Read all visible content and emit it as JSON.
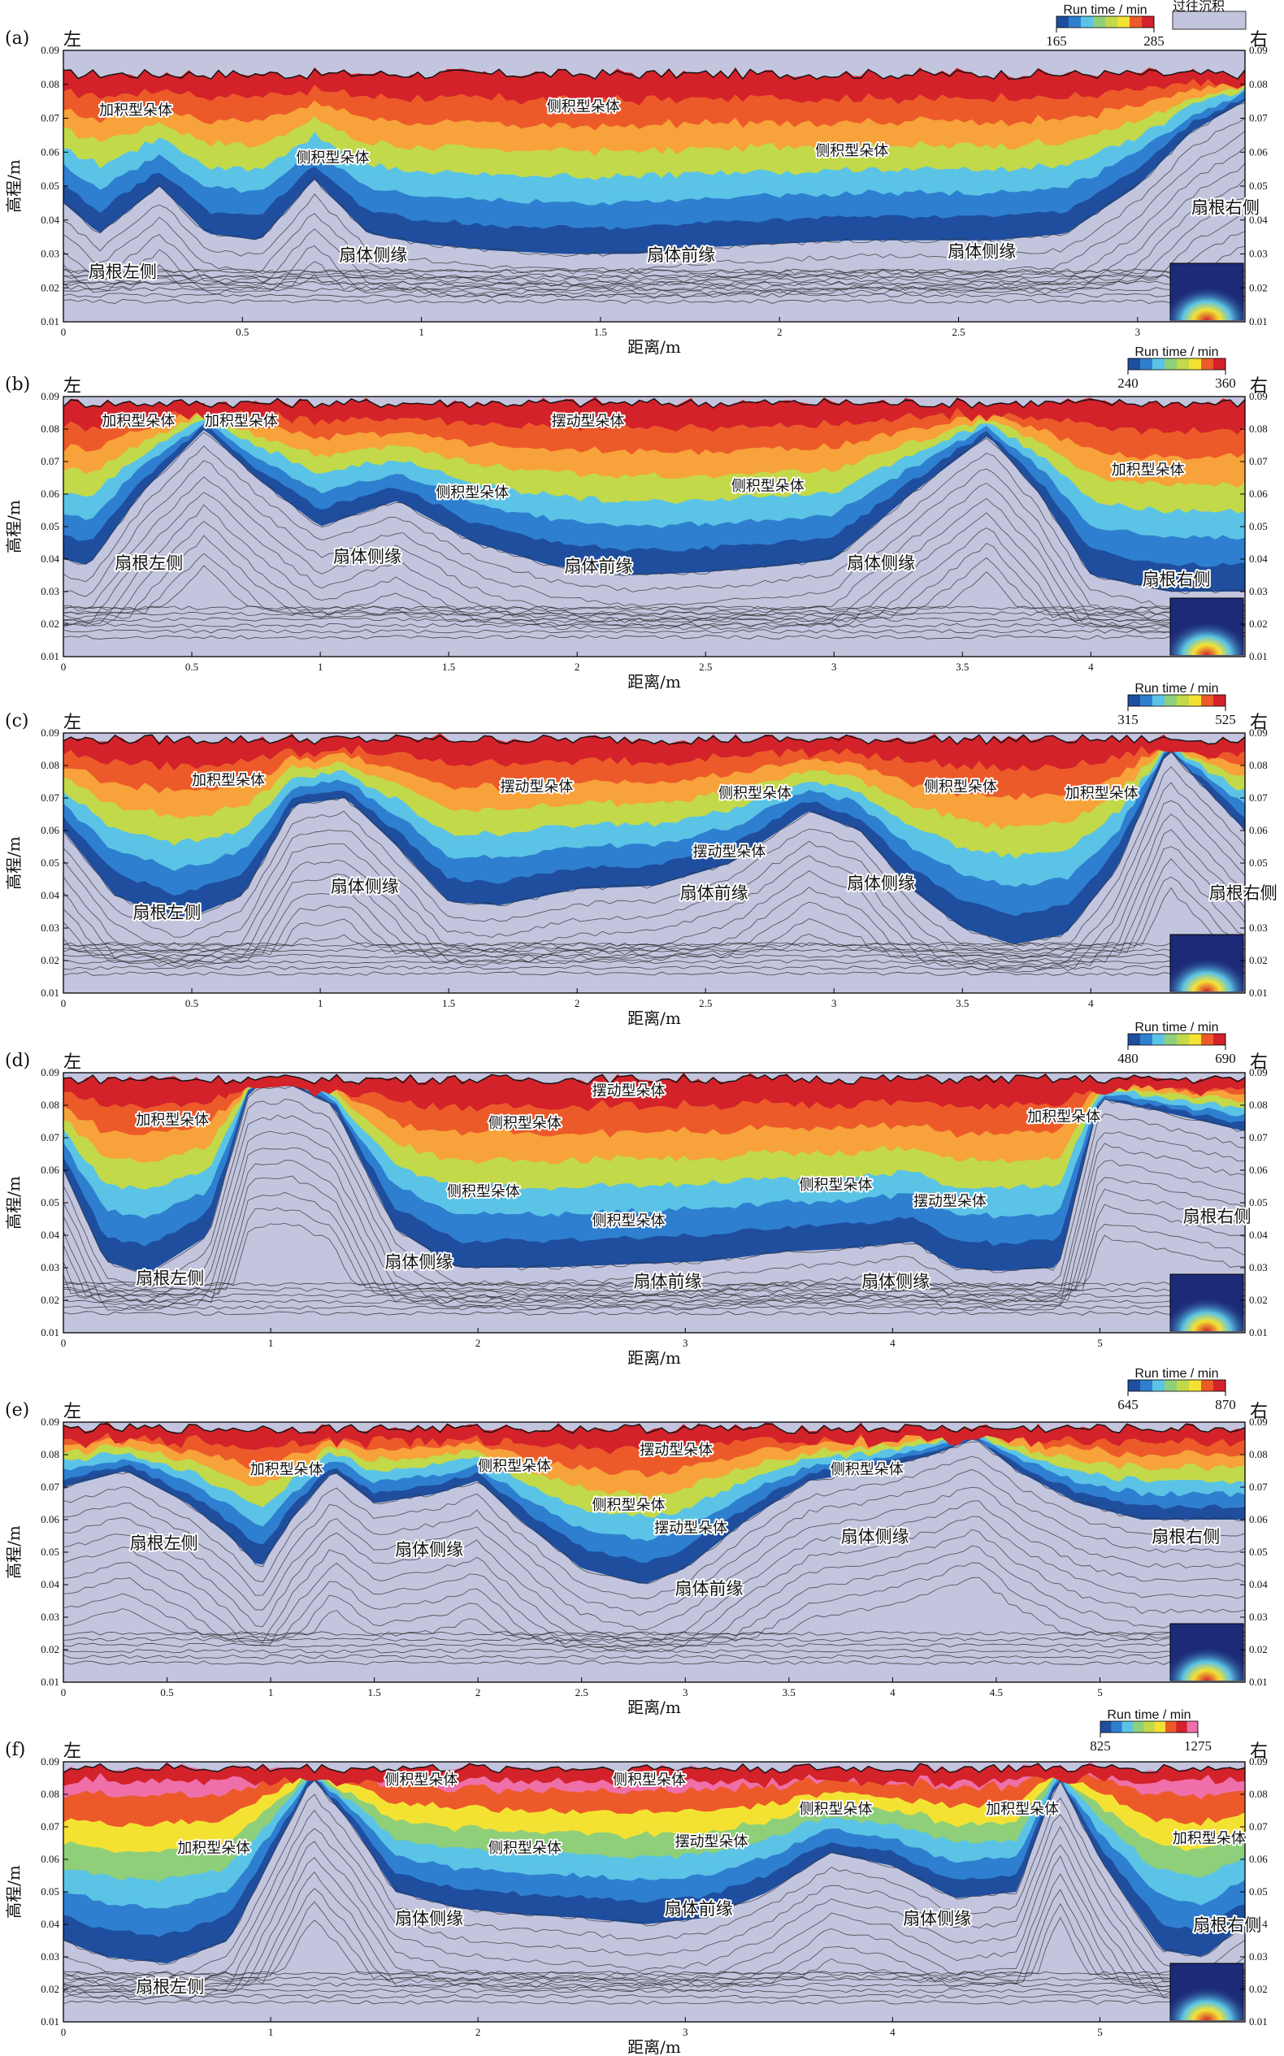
{
  "figure": {
    "legend_past": "过往沉积",
    "colorbar_title": "Run time / min",
    "palette": [
      "#1f4e9e",
      "#2f7fd0",
      "#5bc4e6",
      "#8fcf7a",
      "#c2d94a",
      "#f4e233",
      "#f7a23a",
      "#ec5a2a",
      "#d3222a",
      "#9e1a1a",
      "#ef6fa8"
    ],
    "past_color": "#c3c5de"
  },
  "chart_data": [
    {
      "type": "area",
      "panel_label": "(a)",
      "left_label": "左",
      "right_label": "右",
      "xlabel": "距离/m",
      "ylabel": "高程/m",
      "xlim": [
        0,
        3.3
      ],
      "xticks": [
        "0",
        "0.5",
        "1",
        "1.5",
        "2",
        "2.5",
        "3"
      ],
      "ylim": [
        0.01,
        0.09
      ],
      "yticks": [
        "0.01",
        "0.02",
        "0.03",
        "0.04",
        "0.05",
        "0.06",
        "0.07",
        "0.08",
        "0.09"
      ],
      "colorbar": {
        "min": "165",
        "max": "285"
      },
      "surface_elevation": 0.083,
      "past_surface": {
        "x": [
          0,
          0.1,
          0.27,
          0.4,
          0.55,
          0.7,
          0.85,
          1.0,
          1.2,
          1.4,
          1.6,
          1.8,
          2.0,
          2.2,
          2.4,
          2.6,
          2.8,
          3.0,
          3.15,
          3.3
        ],
        "y": [
          0.045,
          0.036,
          0.05,
          0.036,
          0.034,
          0.052,
          0.036,
          0.033,
          0.031,
          0.03,
          0.03,
          0.032,
          0.033,
          0.034,
          0.034,
          0.034,
          0.036,
          0.05,
          0.066,
          0.075
        ]
      },
      "annotations": [
        {
          "text": "加积型朵体",
          "x": 0.1,
          "y": 0.071
        },
        {
          "text": "侧积型朵体",
          "x": 1.35,
          "y": 0.072
        },
        {
          "text": "侧积型朵体",
          "x": 0.65,
          "y": 0.057
        },
        {
          "text": "侧积型朵体",
          "x": 2.1,
          "y": 0.059
        },
        {
          "text": "扇根左侧",
          "x": 0.07,
          "y": 0.023
        },
        {
          "text": "扇体侧缘",
          "x": 0.77,
          "y": 0.028
        },
        {
          "text": "扇体前缘",
          "x": 1.63,
          "y": 0.028
        },
        {
          "text": "扇体侧缘",
          "x": 2.47,
          "y": 0.029
        },
        {
          "text": "扇根右侧",
          "x": 3.15,
          "y": 0.042
        }
      ]
    },
    {
      "type": "area",
      "panel_label": "(b)",
      "left_label": "左",
      "right_label": "右",
      "xlabel": "距离/m",
      "ylabel": "高程/m",
      "xlim": [
        0,
        4.6
      ],
      "xticks": [
        "0",
        "0.5",
        "1",
        "1.5",
        "2",
        "2.5",
        "3",
        "3.5",
        "4"
      ],
      "ylim": [
        0.01,
        0.09
      ],
      "yticks": [
        "0.01",
        "0.02",
        "0.03",
        "0.04",
        "0.05",
        "0.06",
        "0.07",
        "0.08",
        "0.09"
      ],
      "colorbar": {
        "min": "240",
        "max": "360"
      },
      "surface_elevation": 0.088,
      "past_surface": {
        "x": [
          0,
          0.1,
          0.3,
          0.55,
          0.75,
          1.0,
          1.3,
          1.6,
          1.9,
          2.2,
          2.5,
          2.8,
          3.0,
          3.3,
          3.6,
          3.8,
          4.0,
          4.3,
          4.6
        ],
        "y": [
          0.04,
          0.038,
          0.06,
          0.08,
          0.065,
          0.05,
          0.058,
          0.045,
          0.038,
          0.035,
          0.036,
          0.038,
          0.04,
          0.06,
          0.078,
          0.06,
          0.035,
          0.03,
          0.03
        ]
      },
      "annotations": [
        {
          "text": "加积型朵体",
          "x": 0.15,
          "y": 0.081
        },
        {
          "text": "加积型朵体",
          "x": 0.55,
          "y": 0.081
        },
        {
          "text": "摆动型朵体",
          "x": 1.9,
          "y": 0.081
        },
        {
          "text": "侧积型朵体",
          "x": 1.45,
          "y": 0.059
        },
        {
          "text": "侧积型朵体",
          "x": 2.6,
          "y": 0.061
        },
        {
          "text": "加积型朵体",
          "x": 4.08,
          "y": 0.066
        },
        {
          "text": "扇根左侧",
          "x": 0.2,
          "y": 0.037
        },
        {
          "text": "扇体侧缘",
          "x": 1.05,
          "y": 0.039
        },
        {
          "text": "扇体前缘",
          "x": 1.95,
          "y": 0.036
        },
        {
          "text": "扇体侧缘",
          "x": 3.05,
          "y": 0.037
        },
        {
          "text": "扇根右侧",
          "x": 4.2,
          "y": 0.032
        }
      ]
    },
    {
      "type": "area",
      "panel_label": "(c)",
      "left_label": "左",
      "right_label": "右",
      "xlabel": "距离/m",
      "ylabel": "高程/m",
      "xlim": [
        0,
        4.6
      ],
      "xticks": [
        "0",
        "0.5",
        "1",
        "1.5",
        "2",
        "2.5",
        "3",
        "3.5",
        "4"
      ],
      "ylim": [
        0.01,
        0.09
      ],
      "yticks": [
        "0.01",
        "0.02",
        "0.03",
        "0.04",
        "0.05",
        "0.06",
        "0.07",
        "0.08",
        "0.09"
      ],
      "colorbar": {
        "min": "315",
        "max": "525"
      },
      "surface_elevation": 0.088,
      "past_surface": {
        "x": [
          0,
          0.2,
          0.45,
          0.7,
          0.9,
          1.1,
          1.3,
          1.5,
          1.7,
          2.0,
          2.3,
          2.6,
          2.9,
          3.1,
          3.3,
          3.5,
          3.7,
          3.9,
          4.1,
          4.3,
          4.6
        ],
        "y": [
          0.06,
          0.04,
          0.032,
          0.04,
          0.068,
          0.07,
          0.055,
          0.038,
          0.037,
          0.042,
          0.043,
          0.05,
          0.066,
          0.06,
          0.042,
          0.03,
          0.025,
          0.028,
          0.048,
          0.085,
          0.06
        ]
      },
      "annotations": [
        {
          "text": "加积型朵体",
          "x": 0.5,
          "y": 0.074
        },
        {
          "text": "摆动型朵体",
          "x": 1.7,
          "y": 0.072
        },
        {
          "text": "侧积型朵体",
          "x": 2.55,
          "y": 0.07
        },
        {
          "text": "侧积型朵体",
          "x": 3.35,
          "y": 0.072
        },
        {
          "text": "摆动型朵体",
          "x": 2.45,
          "y": 0.052
        },
        {
          "text": "加积型朵体",
          "x": 3.9,
          "y": 0.07
        },
        {
          "text": "扇根左侧",
          "x": 0.27,
          "y": 0.033
        },
        {
          "text": "扇体侧缘",
          "x": 1.04,
          "y": 0.041
        },
        {
          "text": "扇体前缘",
          "x": 2.4,
          "y": 0.039
        },
        {
          "text": "扇体侧缘",
          "x": 3.05,
          "y": 0.042
        },
        {
          "text": "扇根右侧",
          "x": 4.46,
          "y": 0.039
        }
      ]
    },
    {
      "type": "area",
      "panel_label": "(d)",
      "left_label": "左",
      "right_label": "右",
      "xlabel": "距离/m",
      "ylabel": "高程/m",
      "xlim": [
        0,
        5.7
      ],
      "xticks": [
        "0",
        "1",
        "2",
        "3",
        "4",
        "5"
      ],
      "ylim": [
        0.01,
        0.09
      ],
      "yticks": [
        "0.01",
        "0.02",
        "0.03",
        "0.04",
        "0.05",
        "0.06",
        "0.07",
        "0.08",
        "0.09"
      ],
      "colorbar": {
        "min": "480",
        "max": "690"
      },
      "surface_elevation": 0.088,
      "past_surface": {
        "x": [
          0,
          0.2,
          0.4,
          0.7,
          0.9,
          1.1,
          1.3,
          1.6,
          1.9,
          2.3,
          2.7,
          3.1,
          3.5,
          3.8,
          4.1,
          4.3,
          4.5,
          4.8,
          5.0,
          5.3,
          5.7
        ],
        "y": [
          0.06,
          0.032,
          0.028,
          0.04,
          0.085,
          0.086,
          0.08,
          0.042,
          0.03,
          0.03,
          0.031,
          0.032,
          0.035,
          0.036,
          0.038,
          0.03,
          0.029,
          0.03,
          0.082,
          0.078,
          0.072
        ]
      },
      "annotations": [
        {
          "text": "加积型朵体",
          "x": 0.35,
          "y": 0.074
        },
        {
          "text": "摆动型朵体",
          "x": 2.55,
          "y": 0.083
        },
        {
          "text": "侧积型朵体",
          "x": 2.05,
          "y": 0.073
        },
        {
          "text": "侧积型朵体",
          "x": 1.85,
          "y": 0.052
        },
        {
          "text": "侧积型朵体",
          "x": 2.55,
          "y": 0.043
        },
        {
          "text": "侧积型朵体",
          "x": 3.55,
          "y": 0.054
        },
        {
          "text": "摆动型朵体",
          "x": 4.1,
          "y": 0.049
        },
        {
          "text": "加积型朵体",
          "x": 4.65,
          "y": 0.075
        },
        {
          "text": "扇根左侧",
          "x": 0.35,
          "y": 0.025
        },
        {
          "text": "扇体侧缘",
          "x": 1.55,
          "y": 0.03
        },
        {
          "text": "扇体前缘",
          "x": 2.75,
          "y": 0.024
        },
        {
          "text": "扇体侧缘",
          "x": 3.85,
          "y": 0.024
        },
        {
          "text": "扇根右侧",
          "x": 5.4,
          "y": 0.044
        }
      ]
    },
    {
      "type": "area",
      "panel_label": "(e)",
      "left_label": "左",
      "right_label": "右",
      "xlabel": "距离/m",
      "ylabel": "高程/m",
      "xlim": [
        0,
        5.7
      ],
      "xticks": [
        "0",
        "0.5",
        "1",
        "1.5",
        "2",
        "2.5",
        "3",
        "3.5",
        "4",
        "4.5",
        "5"
      ],
      "ylim": [
        0.01,
        0.09
      ],
      "yticks": [
        "0.01",
        "0.02",
        "0.03",
        "0.04",
        "0.05",
        "0.06",
        "0.07",
        "0.08",
        "0.09"
      ],
      "colorbar": {
        "min": "645",
        "max": "870"
      },
      "surface_elevation": 0.088,
      "past_surface": {
        "x": [
          0,
          0.3,
          0.6,
          0.8,
          0.95,
          1.1,
          1.3,
          1.5,
          1.8,
          2.0,
          2.2,
          2.5,
          2.8,
          3.0,
          3.3,
          3.6,
          3.9,
          4.2,
          4.4,
          4.6,
          4.9,
          5.2,
          5.5,
          5.7
        ],
        "y": [
          0.07,
          0.075,
          0.065,
          0.055,
          0.045,
          0.06,
          0.075,
          0.065,
          0.068,
          0.072,
          0.06,
          0.045,
          0.04,
          0.045,
          0.06,
          0.072,
          0.075,
          0.08,
          0.085,
          0.075,
          0.065,
          0.06,
          0.06,
          0.06
        ]
      },
      "annotations": [
        {
          "text": "加积型朵体",
          "x": 0.9,
          "y": 0.074
        },
        {
          "text": "侧积型朵体",
          "x": 2.0,
          "y": 0.075
        },
        {
          "text": "摆动型朵体",
          "x": 2.78,
          "y": 0.08
        },
        {
          "text": "侧积型朵体",
          "x": 2.55,
          "y": 0.063
        },
        {
          "text": "摆动型朵体",
          "x": 2.85,
          "y": 0.056
        },
        {
          "text": "侧积型朵体",
          "x": 3.7,
          "y": 0.074
        },
        {
          "text": "扇根左侧",
          "x": 0.32,
          "y": 0.051
        },
        {
          "text": "扇体侧缘",
          "x": 1.6,
          "y": 0.049
        },
        {
          "text": "扇体前缘",
          "x": 2.95,
          "y": 0.037
        },
        {
          "text": "扇体侧缘",
          "x": 3.75,
          "y": 0.053
        },
        {
          "text": "扇根右侧",
          "x": 5.25,
          "y": 0.053
        }
      ]
    },
    {
      "type": "area",
      "panel_label": "(f)",
      "left_label": "左",
      "right_label": "右",
      "xlabel": "距离/m",
      "ylabel": "高程/m",
      "xlim": [
        0,
        5.7
      ],
      "xticks": [
        "0",
        "1",
        "2",
        "3",
        "4",
        "5"
      ],
      "ylim": [
        0.01,
        0.09
      ],
      "yticks": [
        "0.01",
        "0.02",
        "0.03",
        "0.04",
        "0.05",
        "0.06",
        "0.07",
        "0.08",
        "0.09"
      ],
      "colorbar": {
        "min": "825",
        "max": "1275"
      },
      "surface_elevation": 0.088,
      "past_surface": {
        "x": [
          0,
          0.2,
          0.5,
          0.8,
          1.0,
          1.2,
          1.4,
          1.6,
          1.9,
          2.2,
          2.5,
          2.8,
          3.1,
          3.4,
          3.7,
          4.0,
          4.3,
          4.6,
          4.8,
          5.0,
          5.3,
          5.5,
          5.7
        ],
        "y": [
          0.035,
          0.03,
          0.028,
          0.035,
          0.06,
          0.085,
          0.07,
          0.05,
          0.045,
          0.043,
          0.042,
          0.04,
          0.042,
          0.05,
          0.062,
          0.058,
          0.048,
          0.05,
          0.085,
          0.06,
          0.032,
          0.03,
          0.04
        ]
      },
      "annotations": [
        {
          "text": "加积型朵体",
          "x": 0.55,
          "y": 0.062
        },
        {
          "text": "侧积型朵体",
          "x": 1.55,
          "y": 0.083
        },
        {
          "text": "侧积型朵体",
          "x": 2.65,
          "y": 0.083
        },
        {
          "text": "侧积型朵体",
          "x": 2.05,
          "y": 0.062
        },
        {
          "text": "摆动型朵体",
          "x": 2.95,
          "y": 0.064
        },
        {
          "text": "侧积型朵体",
          "x": 3.55,
          "y": 0.074
        },
        {
          "text": "加积型朵体",
          "x": 4.45,
          "y": 0.074
        },
        {
          "text": "加积型朵体",
          "x": 5.35,
          "y": 0.065
        },
        {
          "text": "扇体侧缘",
          "x": 1.6,
          "y": 0.04
        },
        {
          "text": "扇体前缘",
          "x": 2.9,
          "y": 0.043
        },
        {
          "text": "扇体侧缘",
          "x": 4.05,
          "y": 0.04
        },
        {
          "text": "扇根右侧",
          "x": 5.45,
          "y": 0.038
        },
        {
          "text": "扇根左侧",
          "x": 0.35,
          "y": 0.019
        }
      ]
    }
  ]
}
